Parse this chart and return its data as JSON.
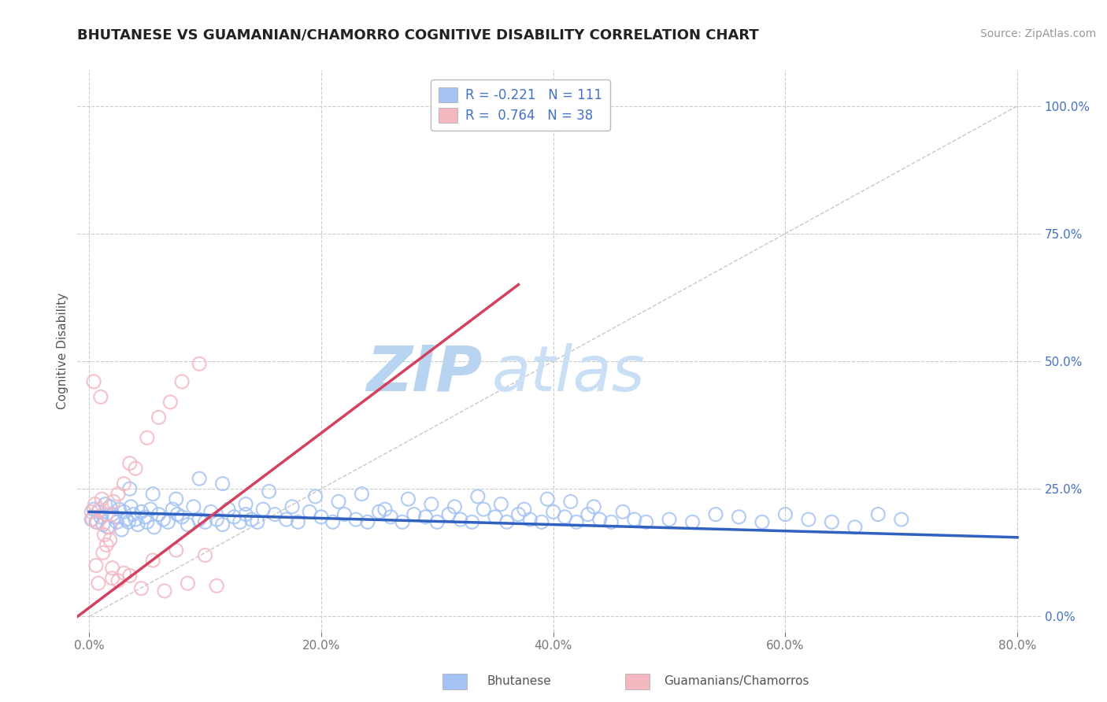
{
  "title": "BHUTANESE VS GUAMANIAN/CHAMORRO COGNITIVE DISABILITY CORRELATION CHART",
  "source": "Source: ZipAtlas.com",
  "xlabel_vals": [
    0.0,
    20.0,
    40.0,
    60.0,
    80.0
  ],
  "ylabel_vals": [
    0.0,
    25.0,
    50.0,
    75.0,
    100.0
  ],
  "xlim": [
    -1.0,
    82.0
  ],
  "ylim": [
    -3.0,
    107.0
  ],
  "blue_color": "#a4c2f4",
  "pink_color": "#f4b8c1",
  "blue_line_color": "#3060c0",
  "pink_line_color": "#d44060",
  "diag_line_color": "#c8c8c8",
  "R_blue": -0.221,
  "N_blue": 111,
  "R_pink": 0.764,
  "N_pink": 38,
  "legend_label_blue": "Bhutanese",
  "legend_label_pink": "Guamanians/Chamorros",
  "ylabel": "Cognitive Disability",
  "watermark_zip": "ZIP",
  "watermark_atlas": "atlas",
  "watermark_color": "#d4e8f8",
  "blue_scatter_x": [
    0.2,
    0.4,
    0.6,
    0.8,
    1.0,
    1.2,
    1.4,
    1.6,
    1.8,
    2.0,
    2.2,
    2.4,
    2.6,
    2.8,
    3.0,
    3.2,
    3.4,
    3.6,
    3.8,
    4.0,
    4.2,
    4.5,
    4.8,
    5.0,
    5.3,
    5.6,
    6.0,
    6.4,
    6.8,
    7.2,
    7.6,
    8.0,
    8.5,
    9.0,
    9.5,
    10.0,
    10.5,
    11.0,
    11.5,
    12.0,
    12.5,
    13.0,
    13.5,
    14.0,
    14.5,
    15.0,
    16.0,
    17.0,
    18.0,
    19.0,
    20.0,
    21.0,
    22.0,
    23.0,
    24.0,
    25.0,
    26.0,
    27.0,
    28.0,
    29.0,
    30.0,
    31.0,
    32.0,
    33.0,
    34.0,
    35.0,
    36.0,
    37.0,
    38.0,
    39.0,
    40.0,
    41.0,
    42.0,
    43.0,
    44.0,
    45.0,
    46.0,
    47.0,
    48.0,
    50.0,
    52.0,
    54.0,
    56.0,
    58.0,
    60.0,
    62.0,
    64.0,
    66.0,
    68.0,
    70.0,
    3.5,
    5.5,
    7.5,
    9.5,
    11.5,
    13.5,
    15.5,
    17.5,
    19.5,
    21.5,
    23.5,
    25.5,
    27.5,
    29.5,
    31.5,
    33.5,
    35.5,
    37.5,
    39.5,
    41.5,
    43.5
  ],
  "blue_scatter_y": [
    19.0,
    21.0,
    18.5,
    20.5,
    19.5,
    18.0,
    22.0,
    17.5,
    21.5,
    20.0,
    19.5,
    18.5,
    21.0,
    17.0,
    20.5,
    19.0,
    18.5,
    21.5,
    20.0,
    19.0,
    18.0,
    20.5,
    19.5,
    18.5,
    21.0,
    17.5,
    20.0,
    19.0,
    18.5,
    21.0,
    20.0,
    19.5,
    18.0,
    21.5,
    19.0,
    18.5,
    20.5,
    19.0,
    18.0,
    21.0,
    19.5,
    18.5,
    20.0,
    19.0,
    18.5,
    21.0,
    20.0,
    19.0,
    18.5,
    20.5,
    19.5,
    18.5,
    20.0,
    19.0,
    18.5,
    20.5,
    19.5,
    18.5,
    20.0,
    19.5,
    18.5,
    20.0,
    19.0,
    18.5,
    21.0,
    19.5,
    18.5,
    20.0,
    19.0,
    18.5,
    20.5,
    19.5,
    18.5,
    20.0,
    19.0,
    18.5,
    20.5,
    19.0,
    18.5,
    19.0,
    18.5,
    20.0,
    19.5,
    18.5,
    20.0,
    19.0,
    18.5,
    17.5,
    20.0,
    19.0,
    25.0,
    24.0,
    23.0,
    27.0,
    26.0,
    22.0,
    24.5,
    21.5,
    23.5,
    22.5,
    24.0,
    21.0,
    23.0,
    22.0,
    21.5,
    23.5,
    22.0,
    21.0,
    23.0,
    22.5,
    21.5
  ],
  "pink_scatter_x": [
    0.2,
    0.3,
    0.5,
    0.7,
    0.9,
    1.1,
    1.3,
    1.5,
    1.8,
    2.1,
    2.5,
    3.0,
    3.5,
    4.0,
    5.0,
    6.0,
    7.0,
    8.0,
    9.5,
    11.0,
    1.0,
    2.0,
    3.5,
    5.5,
    7.5,
    10.0,
    0.4,
    0.8,
    1.5,
    2.5,
    4.5,
    6.5,
    8.5,
    1.2,
    0.6,
    1.8,
    3.0,
    2.0
  ],
  "pink_scatter_y": [
    20.5,
    19.0,
    22.0,
    18.5,
    21.0,
    23.0,
    16.0,
    20.0,
    17.5,
    22.5,
    24.0,
    26.0,
    30.0,
    29.0,
    35.0,
    39.0,
    42.0,
    46.0,
    49.5,
    6.0,
    43.0,
    9.5,
    8.0,
    11.0,
    13.0,
    12.0,
    46.0,
    6.5,
    14.0,
    7.0,
    5.5,
    5.0,
    6.5,
    12.5,
    10.0,
    15.0,
    8.5,
    7.5
  ],
  "blue_trend_x": [
    0.0,
    80.0
  ],
  "blue_trend_y": [
    20.5,
    15.5
  ],
  "pink_trend_x": [
    -1.0,
    37.0
  ],
  "pink_trend_y": [
    0.0,
    65.0
  ],
  "diag_trend_x": [
    0.0,
    80.0
  ],
  "diag_trend_y": [
    0.0,
    100.0
  ],
  "bg_color": "#ffffff",
  "grid_color": "#cccccc",
  "title_fontsize": 13,
  "axis_label_fontsize": 11,
  "tick_fontsize": 11,
  "legend_fontsize": 12,
  "source_fontsize": 10
}
